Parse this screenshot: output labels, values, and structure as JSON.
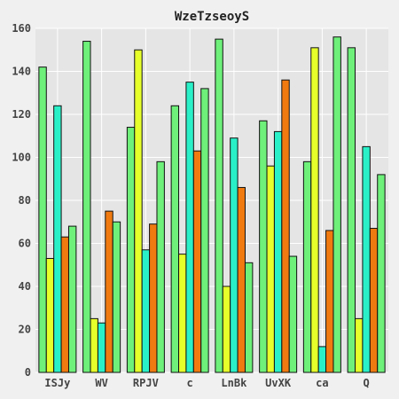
{
  "chart_data": {
    "type": "bar",
    "title": "WzeTzseoyS",
    "xlabel": "",
    "ylabel": "",
    "categories": [
      "ISJy",
      "WV",
      "RPJV",
      "c",
      "LnBk",
      "UvXK",
      "ca",
      "Q"
    ],
    "ylim": [
      0,
      160
    ],
    "yticks": [
      0,
      20,
      40,
      60,
      80,
      100,
      120,
      140,
      160
    ],
    "grid": true,
    "legend": "none",
    "series": [
      {
        "color": "#6ef07a",
        "values": [
          142,
          154,
          114,
          124,
          155,
          117,
          98,
          151
        ]
      },
      {
        "color": "#e6ff2a",
        "values": [
          53,
          25,
          150,
          55,
          40,
          96,
          151,
          25
        ]
      },
      {
        "color": "#2af0c8",
        "values": [
          124,
          23,
          57,
          135,
          109,
          112,
          12,
          105
        ]
      },
      {
        "color": "#f07a10",
        "values": [
          63,
          75,
          69,
          103,
          86,
          136,
          66,
          67
        ]
      },
      {
        "color": "#6ef07a",
        "values": [
          68,
          70,
          98,
          132,
          51,
          54,
          156,
          92
        ]
      }
    ]
  }
}
